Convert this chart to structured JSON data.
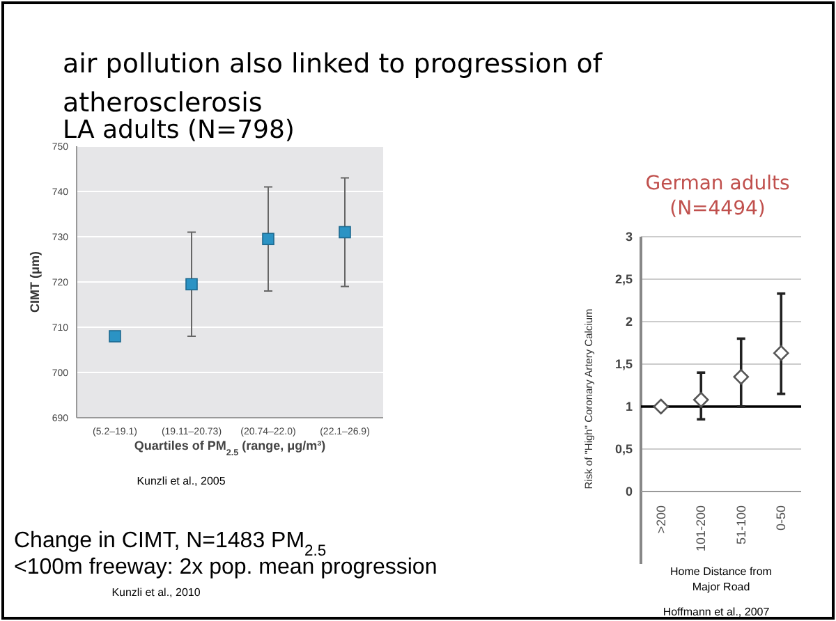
{
  "chart_data": [
    {
      "type": "scatter",
      "title": "air pollution also linked to progression of atherosclerosis",
      "subtitle": "LA adults (N=798)",
      "xlabel": "Quartiles of PM$_{2.5}$ (range, μg/m³)",
      "ylabel": "CIMT (μm)",
      "categories": [
        "(5.2–19.1)",
        "(19.11–20.73)",
        "(20.74–22.0)",
        "(22.1–26.9)"
      ],
      "series": [
        {
          "color": "#2b93c4",
          "values": [
            708,
            719.5,
            729.5,
            731
          ],
          "errors": [
            null,
            [
              708,
              731
            ],
            [
              718,
              741
            ],
            [
              719,
              743
            ]
          ]
        }
      ],
      "ylim": [
        690,
        750
      ],
      "yticks": [
        690,
        700,
        710,
        720,
        730,
        740,
        750
      ],
      "grid": "y",
      "marker": "square",
      "annotations": [
        "Kunzli et al., 2005",
        "Change in CIMT, N=1483   PM$_{2.5}$",
        "<100m freeway: 2x pop. mean progression",
        "Kunzli et al., 2010"
      ]
    },
    {
      "type": "scatter",
      "title": "German adults (N=4494)",
      "xlabel": "Home Distance from Major Road",
      "ylabel": "Risk of \"High\" Coronary Artery Calcium",
      "categories": [
        ">200",
        "101-200",
        "51-100",
        "0-50"
      ],
      "series": [
        {
          "color": "#ffffff",
          "values": [
            1,
            1.08,
            1.35,
            1.63
          ],
          "errors": [
            null,
            [
              0.85,
              1.4
            ],
            [
              1.0,
              1.8
            ],
            [
              1.15,
              2.33
            ]
          ]
        }
      ],
      "ylim": [
        0,
        3
      ],
      "yticks": [
        0,
        {
          "value": 0.5,
          "label": "0,5"
        },
        1,
        {
          "value": 1.5,
          "label": "1,5"
        },
        2,
        {
          "value": 2.5,
          "label": "2,5"
        },
        3
      ],
      "grid": "y",
      "marker": "diamond",
      "ref_lines": [
        {
          "axis": "y",
          "value": 1,
          "color": "#000000"
        }
      ],
      "annotations": [
        "Hoffmann et al., 2007"
      ]
    }
  ]
}
